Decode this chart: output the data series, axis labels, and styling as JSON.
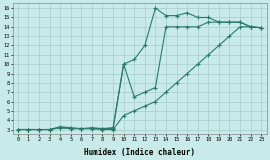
{
  "bg_color": "#c8eae8",
  "grid_color": "#a8ccc8",
  "line_color": "#2a7a6a",
  "xlabel": "Humidex (Indice chaleur)",
  "xlim": [
    -0.5,
    23.5
  ],
  "ylim": [
    2.5,
    16.5
  ],
  "xticks": [
    0,
    1,
    2,
    3,
    4,
    5,
    6,
    7,
    8,
    9,
    10,
    11,
    12,
    13,
    14,
    15,
    16,
    17,
    18,
    19,
    20,
    21,
    22,
    23
  ],
  "yticks": [
    3,
    4,
    5,
    6,
    7,
    8,
    9,
    10,
    11,
    12,
    13,
    14,
    15,
    16
  ],
  "line1_x": [
    0,
    1,
    2,
    3,
    4,
    5,
    6,
    7,
    8,
    9,
    10,
    11,
    12,
    13,
    14,
    15,
    16,
    17,
    18,
    19,
    20,
    21,
    22,
    23
  ],
  "line1_y": [
    3,
    3,
    3,
    3,
    3.2,
    3.1,
    3.1,
    3.1,
    3.1,
    3.1,
    10.0,
    10.5,
    12,
    16,
    15.2,
    15.2,
    15.5,
    15.0,
    15.0,
    14.5,
    14.5,
    14.5,
    14.0,
    13.9
  ],
  "line2_x": [
    0,
    1,
    2,
    3,
    4,
    5,
    6,
    7,
    8,
    9,
    10,
    11,
    12,
    13,
    14,
    15,
    16,
    17,
    18,
    19,
    20,
    21,
    22,
    23
  ],
  "line2_y": [
    3,
    3,
    3,
    3,
    3.3,
    3.2,
    3.1,
    3.2,
    3.1,
    3.2,
    10.0,
    6.5,
    7.0,
    7.5,
    14.0,
    14.0,
    14.0,
    14.0,
    14.5,
    14.5,
    14.5,
    14.5,
    14.0,
    13.9
  ],
  "line3_x": [
    0,
    1,
    2,
    3,
    4,
    5,
    6,
    7,
    8,
    9,
    10,
    11,
    12,
    13,
    14,
    15,
    16,
    17,
    18,
    19,
    20,
    21,
    22,
    23
  ],
  "line3_y": [
    3,
    3,
    3,
    3,
    3.2,
    3.1,
    3.1,
    3.1,
    3.0,
    3.0,
    4.5,
    5.0,
    5.5,
    6.0,
    7.0,
    8.0,
    9.0,
    10.0,
    11.0,
    12.0,
    13.0,
    14.0,
    14.0,
    13.9
  ]
}
